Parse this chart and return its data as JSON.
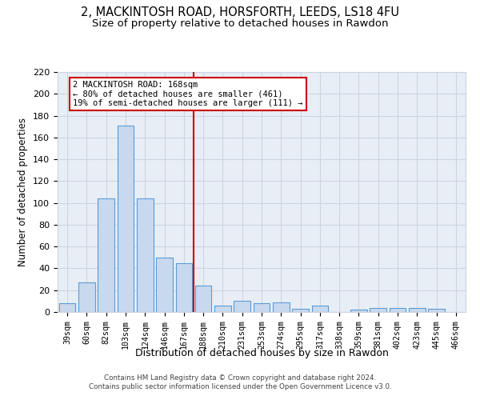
{
  "title1": "2, MACKINTOSH ROAD, HORSFORTH, LEEDS, LS18 4FU",
  "title2": "Size of property relative to detached houses in Rawdon",
  "xlabel": "Distribution of detached houses by size in Rawdon",
  "ylabel": "Number of detached properties",
  "bar_labels": [
    "39sqm",
    "60sqm",
    "82sqm",
    "103sqm",
    "124sqm",
    "146sqm",
    "167sqm",
    "188sqm",
    "210sqm",
    "231sqm",
    "253sqm",
    "274sqm",
    "295sqm",
    "317sqm",
    "338sqm",
    "359sqm",
    "381sqm",
    "402sqm",
    "423sqm",
    "445sqm",
    "466sqm"
  ],
  "bar_values": [
    8,
    27,
    104,
    171,
    104,
    50,
    45,
    24,
    6,
    10,
    8,
    9,
    3,
    6,
    0,
    2,
    4,
    4,
    4,
    3,
    0
  ],
  "bar_color": "#c8d9ee",
  "bar_edge_color": "#5b9bd5",
  "vline_color": "#cc0000",
  "annotation_text": "2 MACKINTOSH ROAD: 168sqm\n← 80% of detached houses are smaller (461)\n19% of semi-detached houses are larger (111) →",
  "annotation_box_color": "#ffffff",
  "annotation_box_edge": "#cc0000",
  "ylim": [
    0,
    220
  ],
  "yticks": [
    0,
    20,
    40,
    60,
    80,
    100,
    120,
    140,
    160,
    180,
    200,
    220
  ],
  "grid_color": "#cdd5e3",
  "background_color": "#e8eef5",
  "footer": "Contains HM Land Registry data © Crown copyright and database right 2024.\nContains public sector information licensed under the Open Government Licence v3.0.",
  "title_fontsize": 10.5,
  "subtitle_fontsize": 9.5
}
